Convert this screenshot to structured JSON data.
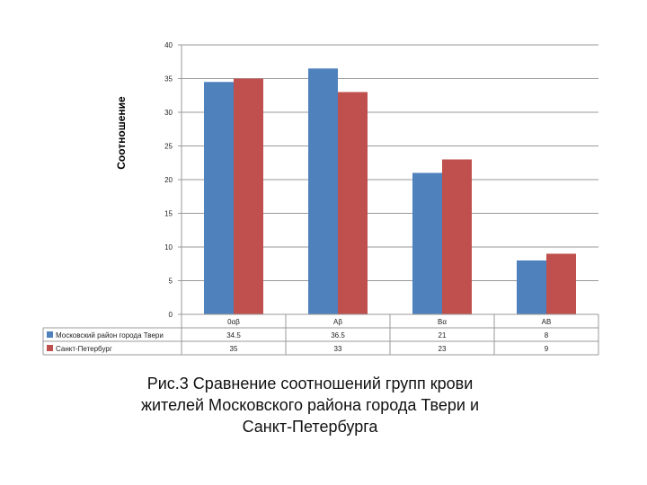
{
  "chart_data": {
    "type": "bar",
    "ylabel": "Соотношение",
    "ylim": [
      0,
      40
    ],
    "yticks": [
      0,
      5,
      10,
      15,
      20,
      25,
      30,
      35,
      40
    ],
    "grid": true,
    "categories": [
      "0αβ",
      "Aβ",
      "Bα",
      "AB"
    ],
    "series": [
      {
        "name": "Московский район города Твери",
        "color": "#4F81BD",
        "values": [
          34.5,
          36.5,
          21,
          8
        ],
        "labels": [
          "34.5",
          "36.5",
          "21",
          "8"
        ]
      },
      {
        "name": "Санкт-Петербург",
        "color": "#C0504D",
        "values": [
          35,
          33,
          23,
          9
        ],
        "labels": [
          "35",
          "33",
          "23",
          "9"
        ]
      }
    ]
  },
  "caption": {
    "line1": "Рис.3 Сравнение соотношений групп крови",
    "line2": "жителей Московского района города Твери и",
    "line3": "Санкт-Петербурга"
  }
}
